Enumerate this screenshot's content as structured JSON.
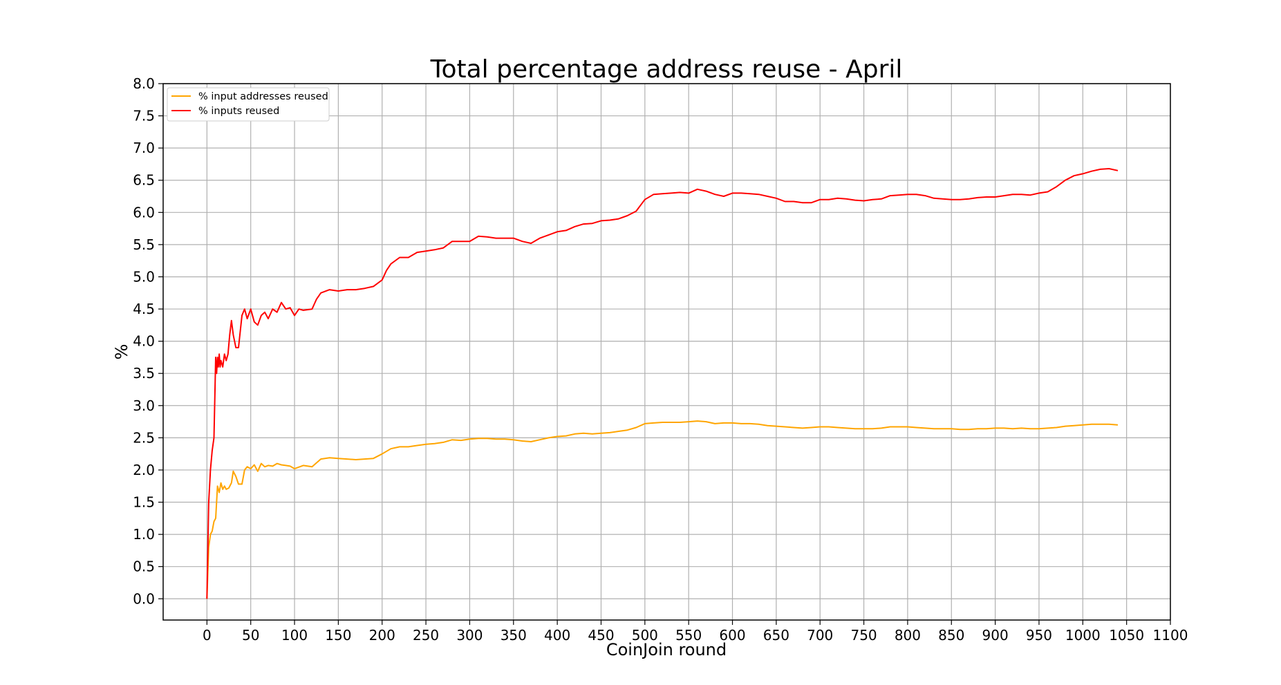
{
  "chart_data": {
    "type": "line",
    "title": "Total percentage address reuse - April",
    "xlabel": "CoinJoin round",
    "ylabel": "%",
    "xlim": [
      -50,
      1100
    ],
    "ylim": [
      -0.33,
      8.0
    ],
    "x_ticks": [
      "0",
      "50",
      "100",
      "150",
      "200",
      "250",
      "300",
      "350",
      "400",
      "450",
      "500",
      "550",
      "600",
      "650",
      "700",
      "750",
      "800",
      "850",
      "900",
      "950",
      "1000",
      "1050",
      "1100"
    ],
    "y_ticks": [
      "0.0",
      "0.5",
      "1.0",
      "1.5",
      "2.0",
      "2.5",
      "3.0",
      "3.5",
      "4.0",
      "4.5",
      "5.0",
      "5.5",
      "6.0",
      "6.5",
      "7.0",
      "7.5",
      "8.0"
    ],
    "grid": true,
    "legend_position": "upper-left",
    "series": [
      {
        "name": "% input addresses reused",
        "color": "#ffa500",
        "x": [
          0,
          2,
          4,
          6,
          8,
          10,
          12,
          14,
          16,
          18,
          20,
          22,
          25,
          28,
          30,
          33,
          36,
          40,
          43,
          46,
          50,
          54,
          58,
          62,
          66,
          70,
          75,
          80,
          85,
          90,
          95,
          100,
          110,
          120,
          130,
          140,
          150,
          160,
          170,
          180,
          190,
          200,
          210,
          220,
          230,
          240,
          250,
          260,
          270,
          280,
          290,
          300,
          310,
          320,
          330,
          340,
          350,
          360,
          370,
          380,
          390,
          400,
          410,
          420,
          430,
          440,
          450,
          460,
          470,
          480,
          490,
          500,
          510,
          520,
          530,
          540,
          550,
          560,
          570,
          580,
          590,
          600,
          610,
          620,
          630,
          640,
          650,
          660,
          670,
          680,
          690,
          700,
          710,
          720,
          730,
          740,
          750,
          760,
          770,
          780,
          790,
          800,
          810,
          820,
          830,
          840,
          850,
          860,
          870,
          880,
          890,
          900,
          910,
          920,
          930,
          940,
          950,
          960,
          970,
          980,
          990,
          1000,
          1010,
          1020,
          1030,
          1040
        ],
        "values": [
          0.0,
          0.8,
          1.0,
          1.05,
          1.2,
          1.25,
          1.75,
          1.65,
          1.8,
          1.7,
          1.75,
          1.7,
          1.72,
          1.8,
          1.98,
          1.9,
          1.78,
          1.78,
          2.0,
          2.05,
          2.02,
          2.08,
          1.98,
          2.1,
          2.05,
          2.07,
          2.06,
          2.1,
          2.08,
          2.07,
          2.06,
          2.02,
          2.07,
          2.05,
          2.17,
          2.19,
          2.18,
          2.17,
          2.16,
          2.17,
          2.18,
          2.25,
          2.33,
          2.36,
          2.36,
          2.38,
          2.4,
          2.41,
          2.43,
          2.47,
          2.46,
          2.48,
          2.49,
          2.49,
          2.48,
          2.48,
          2.47,
          2.45,
          2.44,
          2.47,
          2.5,
          2.52,
          2.53,
          2.56,
          2.57,
          2.56,
          2.57,
          2.58,
          2.6,
          2.62,
          2.66,
          2.72,
          2.73,
          2.74,
          2.74,
          2.74,
          2.75,
          2.76,
          2.75,
          2.72,
          2.73,
          2.73,
          2.72,
          2.72,
          2.71,
          2.69,
          2.68,
          2.67,
          2.66,
          2.65,
          2.66,
          2.67,
          2.67,
          2.66,
          2.65,
          2.64,
          2.64,
          2.64,
          2.65,
          2.67,
          2.67,
          2.67,
          2.66,
          2.65,
          2.64,
          2.64,
          2.64,
          2.63,
          2.63,
          2.64,
          2.64,
          2.65,
          2.65,
          2.64,
          2.65,
          2.64,
          2.64,
          2.65,
          2.66,
          2.68,
          2.69,
          2.7,
          2.71,
          2.71,
          2.71,
          2.7
        ]
      },
      {
        "name": "% inputs reused",
        "color": "#ff0000",
        "x": [
          0,
          2,
          4,
          6,
          8,
          10,
          11,
          12,
          13,
          14,
          15,
          16,
          18,
          20,
          22,
          24,
          26,
          28,
          30,
          33,
          36,
          40,
          43,
          46,
          50,
          54,
          58,
          62,
          66,
          70,
          75,
          80,
          85,
          90,
          95,
          100,
          105,
          110,
          120,
          125,
          130,
          140,
          150,
          160,
          170,
          180,
          190,
          200,
          205,
          210,
          220,
          230,
          240,
          250,
          260,
          270,
          280,
          290,
          300,
          310,
          320,
          330,
          340,
          350,
          360,
          370,
          380,
          390,
          400,
          410,
          420,
          430,
          440,
          450,
          460,
          470,
          480,
          490,
          500,
          510,
          520,
          530,
          540,
          550,
          560,
          570,
          580,
          590,
          600,
          610,
          620,
          630,
          640,
          650,
          660,
          670,
          680,
          690,
          700,
          710,
          720,
          730,
          740,
          750,
          760,
          770,
          780,
          790,
          800,
          810,
          820,
          830,
          840,
          850,
          860,
          870,
          880,
          890,
          900,
          910,
          920,
          930,
          940,
          950,
          960,
          970,
          980,
          990,
          1000,
          1010,
          1020,
          1030,
          1040
        ],
        "values": [
          0.0,
          1.5,
          2.0,
          2.3,
          2.5,
          3.75,
          3.5,
          3.75,
          3.6,
          3.8,
          3.6,
          3.7,
          3.6,
          3.8,
          3.7,
          3.8,
          4.1,
          4.32,
          4.1,
          3.9,
          3.9,
          4.4,
          4.5,
          4.35,
          4.5,
          4.3,
          4.25,
          4.4,
          4.45,
          4.35,
          4.5,
          4.45,
          4.6,
          4.5,
          4.52,
          4.4,
          4.5,
          4.48,
          4.5,
          4.65,
          4.75,
          4.8,
          4.78,
          4.8,
          4.8,
          4.82,
          4.85,
          4.95,
          5.1,
          5.2,
          5.3,
          5.3,
          5.38,
          5.4,
          5.42,
          5.45,
          5.55,
          5.55,
          5.55,
          5.63,
          5.62,
          5.6,
          5.6,
          5.6,
          5.55,
          5.52,
          5.6,
          5.65,
          5.7,
          5.72,
          5.78,
          5.82,
          5.83,
          5.87,
          5.88,
          5.9,
          5.95,
          6.02,
          6.2,
          6.28,
          6.29,
          6.3,
          6.31,
          6.3,
          6.36,
          6.33,
          6.28,
          6.25,
          6.3,
          6.3,
          6.29,
          6.28,
          6.25,
          6.22,
          6.17,
          6.17,
          6.15,
          6.15,
          6.2,
          6.2,
          6.22,
          6.21,
          6.19,
          6.18,
          6.2,
          6.21,
          6.26,
          6.27,
          6.28,
          6.28,
          6.26,
          6.22,
          6.21,
          6.2,
          6.2,
          6.21,
          6.23,
          6.24,
          6.24,
          6.26,
          6.28,
          6.28,
          6.27,
          6.3,
          6.32,
          6.4,
          6.5,
          6.57,
          6.6,
          6.64,
          6.67,
          6.68,
          6.65
        ]
      }
    ]
  }
}
